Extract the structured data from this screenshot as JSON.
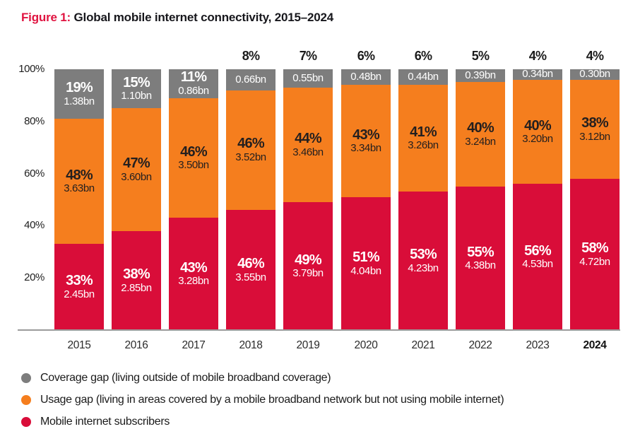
{
  "title": {
    "prefix": "Figure 1:",
    "text": " Global mobile internet connectivity, 2015–2024"
  },
  "colors": {
    "subscribers_red": "#D90D39",
    "usage_gap_orange": "#F57E1E",
    "coverage_gap_gray": "#7D7D7D",
    "title_accent": "#E01340",
    "axis_line": "#9B9B9B"
  },
  "chart_data": {
    "type": "bar",
    "stacked": true,
    "title": "Figure 1: Global mobile internet connectivity, 2015–2024",
    "categories": [
      "2015",
      "2016",
      "2017",
      "2018",
      "2019",
      "2020",
      "2021",
      "2022",
      "2023",
      "2024"
    ],
    "xlabel": "",
    "ylabel": "",
    "ylim": [
      0,
      100
    ],
    "yticks": [
      "100%",
      "80%",
      "60%",
      "40%",
      "20%"
    ],
    "grid": false,
    "legend_position": "bottom",
    "series": [
      {
        "name": "Mobile internet subscribers",
        "color": "#D90D39",
        "pct": [
          33,
          38,
          43,
          46,
          49,
          51,
          53,
          55,
          56,
          58
        ],
        "bn": [
          2.45,
          2.85,
          3.28,
          3.55,
          3.79,
          4.04,
          4.23,
          4.38,
          4.53,
          4.72
        ],
        "labels": [
          "2.45bn",
          "2.85bn",
          "3.28bn",
          "3.55bn",
          "3.79bn",
          "4.04bn",
          "4.23bn",
          "4.38bn",
          "4.53bn",
          "4.72bn"
        ]
      },
      {
        "name": "Usage gap",
        "color": "#F57E1E",
        "pct": [
          48,
          47,
          46,
          46,
          44,
          43,
          41,
          40,
          40,
          38
        ],
        "bn": [
          3.63,
          3.6,
          3.5,
          3.52,
          3.46,
          3.34,
          3.26,
          3.24,
          3.2,
          3.12
        ],
        "labels": [
          "3.63bn",
          "3.60bn",
          "3.50bn",
          "3.52bn",
          "3.46bn",
          "3.34bn",
          "3.26bn",
          "3.24bn",
          "3.20bn",
          "3.12bn"
        ]
      },
      {
        "name": "Coverage gap",
        "color": "#7D7D7D",
        "pct": [
          19,
          15,
          11,
          8,
          7,
          6,
          6,
          5,
          4,
          4
        ],
        "bn": [
          1.38,
          1.1,
          0.86,
          0.66,
          0.55,
          0.48,
          0.44,
          0.39,
          0.34,
          0.3
        ],
        "labels": [
          "1.38bn",
          "1.10bn",
          "0.86bn",
          "0.66bn",
          "0.55bn",
          "0.48bn",
          "0.44bn",
          "0.39bn",
          "0.34bn",
          "0.30bn"
        ],
        "pct_label_inside": [
          true,
          true,
          true,
          false,
          false,
          false,
          false,
          false,
          false,
          false
        ]
      }
    ]
  },
  "legend": {
    "items": [
      {
        "label": "Coverage gap (living outside of mobile broadband coverage)",
        "color": "#7D7D7D",
        "icon": "circle-swatch-icon"
      },
      {
        "label": "Usage gap (living in areas covered by a mobile broadband network but not using mobile internet)",
        "color": "#F57E1E",
        "icon": "circle-swatch-icon"
      },
      {
        "label": "Mobile internet subscribers",
        "color": "#D90D39",
        "icon": "circle-swatch-icon"
      }
    ]
  }
}
